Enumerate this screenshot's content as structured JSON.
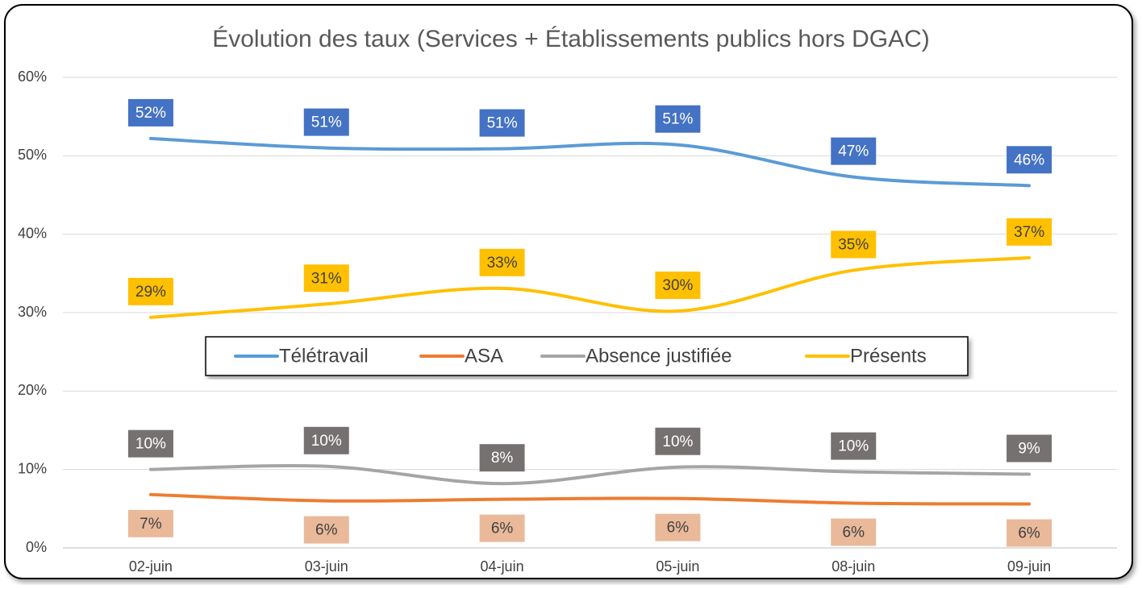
{
  "chart_data": {
    "type": "line",
    "title": "Évolution des taux (Services + Établissements publics hors DGAC)",
    "categories": [
      "02-juin",
      "03-juin",
      "04-juin",
      "05-juin",
      "08-juin",
      "09-juin"
    ],
    "series": [
      {
        "name": "Télétravail",
        "color": "#5b9bd5",
        "label_color": "#4472c4",
        "label_text_color": "#ffffff",
        "label_side": "above",
        "values": [
          52.2,
          51.0,
          50.9,
          51.4,
          47.3,
          46.2
        ],
        "value_labels": [
          "52%",
          "51%",
          "51%",
          "51%",
          "47%",
          "46%"
        ]
      },
      {
        "name": "ASA",
        "color": "#ed7d31",
        "label_color": "#e9b99a",
        "label_text_color": "#404040",
        "label_side": "below",
        "values": [
          6.8,
          6.0,
          6.2,
          6.3,
          5.7,
          5.6
        ],
        "value_labels": [
          "7%",
          "6%",
          "6%",
          "6%",
          "6%",
          "6%"
        ]
      },
      {
        "name": "Absence justifiée",
        "color": "#a5a5a5",
        "label_color": "#767171",
        "label_text_color": "#ffffff",
        "label_side": "above",
        "values": [
          10.0,
          10.4,
          8.2,
          10.3,
          9.7,
          9.4
        ],
        "value_labels": [
          "10%",
          "10%",
          "8%",
          "10%",
          "10%",
          "9%"
        ]
      },
      {
        "name": "Présents",
        "color": "#ffc000",
        "label_color": "#ffc000",
        "label_text_color": "#404040",
        "label_side": "above",
        "values": [
          29.4,
          31.1,
          33.1,
          30.2,
          35.4,
          37.0
        ],
        "value_labels": [
          "29%",
          "31%",
          "33%",
          "30%",
          "35%",
          "37%"
        ]
      }
    ],
    "ylim": [
      0,
      60
    ],
    "yticks": [
      {
        "value": 0,
        "label": "0%"
      },
      {
        "value": 10,
        "label": "10%"
      },
      {
        "value": 20,
        "label": "20%"
      },
      {
        "value": 30,
        "label": "30%"
      },
      {
        "value": 40,
        "label": "40%"
      },
      {
        "value": 50,
        "label": "50%"
      },
      {
        "value": 60,
        "label": "60%"
      }
    ],
    "grid": true,
    "legend": "center"
  }
}
